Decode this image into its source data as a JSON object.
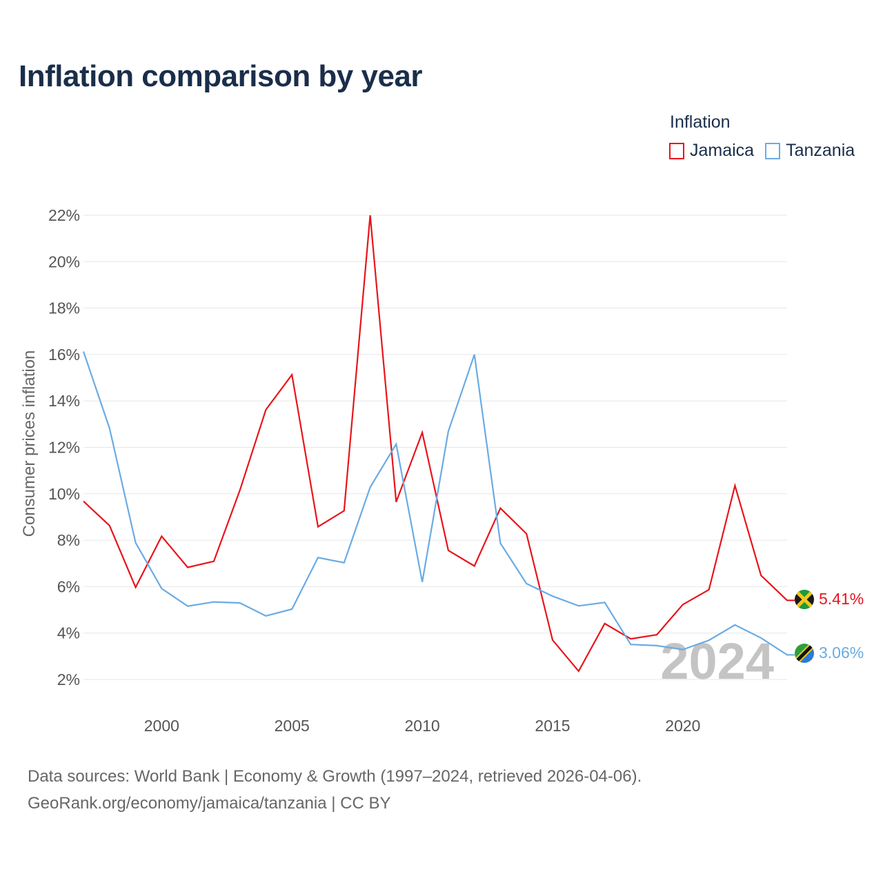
{
  "title": "Inflation comparison by year",
  "legend": {
    "title": "Inflation",
    "items": [
      {
        "label": "Jamaica",
        "color": "#e8141b"
      },
      {
        "label": "Tanzania",
        "color": "#6aabe4"
      }
    ]
  },
  "watermark_year": "2024",
  "footer": {
    "line1": "Data sources: World Bank | Economy & Growth (1997–2024, retrieved 2026-04-06).",
    "line2": "GeoRank.org/economy/jamaica/tanzania | CC BY"
  },
  "chart_data": {
    "type": "line",
    "title": "Inflation comparison by year",
    "xlabel": "",
    "ylabel": "Consumer prices inflation",
    "xlim": [
      1997,
      2024
    ],
    "ylim": [
      2,
      22
    ],
    "x_ticks": [
      2000,
      2005,
      2010,
      2015,
      2020
    ],
    "y_ticks": [
      2,
      4,
      6,
      8,
      10,
      12,
      14,
      16,
      18,
      20,
      22
    ],
    "y_tick_labels": [
      "2%",
      "4%",
      "6%",
      "8%",
      "10%",
      "12%",
      "14%",
      "16%",
      "18%",
      "20%",
      "22%"
    ],
    "grid": "horizontal",
    "legend_position": "top-right",
    "x": [
      1997,
      1998,
      1999,
      2000,
      2001,
      2002,
      2003,
      2004,
      2005,
      2006,
      2007,
      2008,
      2009,
      2010,
      2011,
      2012,
      2013,
      2014,
      2015,
      2016,
      2017,
      2018,
      2019,
      2020,
      2021,
      2022,
      2023,
      2024
    ],
    "series": [
      {
        "name": "Jamaica",
        "color": "#e8141b",
        "end_label": "5.41%",
        "values": [
          9.68,
          8.63,
          5.97,
          8.17,
          6.83,
          7.09,
          10.15,
          13.62,
          15.13,
          8.58,
          9.27,
          22.0,
          9.65,
          12.64,
          7.56,
          6.89,
          9.38,
          8.28,
          3.7,
          2.36,
          4.41,
          3.75,
          3.93,
          5.23,
          5.87,
          10.35,
          6.48,
          5.41
        ]
      },
      {
        "name": "Tanzania",
        "color": "#6aabe4",
        "end_label": "3.06%",
        "values": [
          16.13,
          12.82,
          7.89,
          5.92,
          5.16,
          5.34,
          5.3,
          4.74,
          5.03,
          7.25,
          7.03,
          10.28,
          12.14,
          6.2,
          12.69,
          16.0,
          7.87,
          6.13,
          5.59,
          5.17,
          5.32,
          3.51,
          3.46,
          3.29,
          3.69,
          4.35,
          3.79,
          3.06
        ]
      }
    ]
  }
}
